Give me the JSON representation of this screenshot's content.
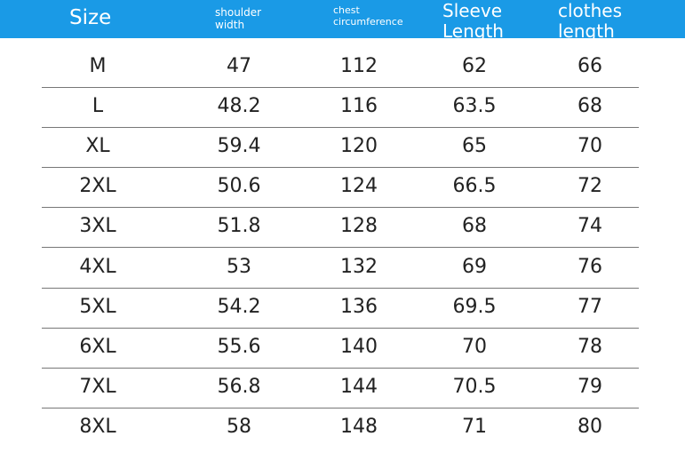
{
  "table": {
    "header": [
      "Size",
      "shoulder width",
      "chest circumference",
      "Sleeve Length",
      "clothes length"
    ],
    "rows": [
      [
        "M",
        47,
        112,
        62,
        66
      ],
      [
        "L",
        48.2,
        116,
        63.5,
        68
      ],
      [
        "XL",
        59.4,
        120,
        65,
        70
      ],
      [
        "2XL",
        50.6,
        124,
        66.5,
        72
      ],
      [
        "3XL",
        51.8,
        128,
        68,
        74
      ],
      [
        "4XL",
        53,
        132,
        69,
        76
      ],
      [
        "5XL",
        54.2,
        136,
        69.5,
        77
      ],
      [
        "6XL",
        55.6,
        140,
        70,
        78
      ],
      [
        "7XL",
        56.8,
        144,
        70.5,
        79
      ],
      [
        "8XL",
        58,
        148,
        71,
        80
      ]
    ]
  }
}
